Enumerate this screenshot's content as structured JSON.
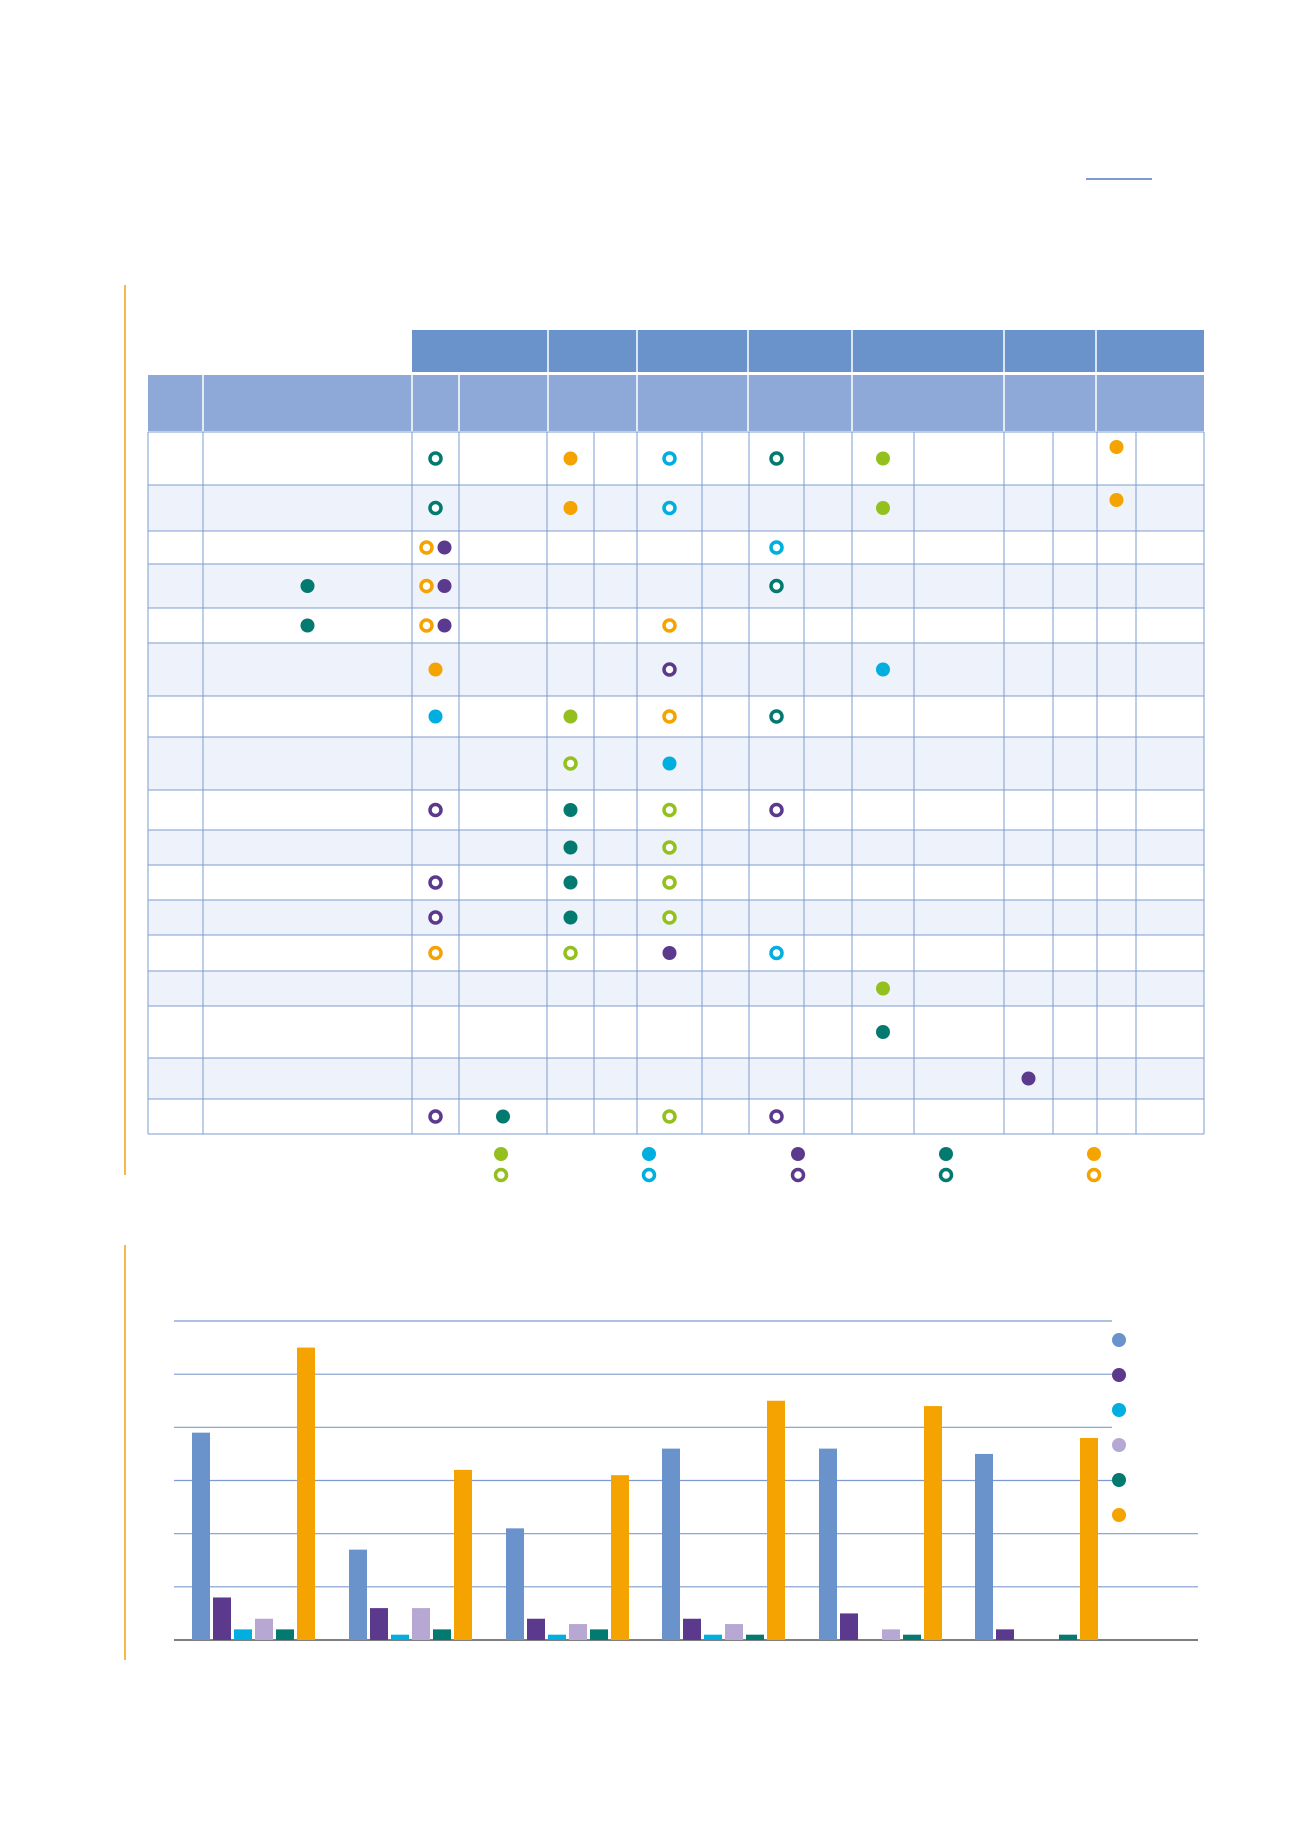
{
  "colors": {
    "header_dark": "#6b93cb",
    "header_light": "#8ea9d8",
    "row_alt": "#eef2fa",
    "grid": "#7d9bd0",
    "side_rule": "#f7b84a",
    "top_rule": "#7d9bd0",
    "lime": "#93c01f",
    "cyan": "#00aee0",
    "purple": "#5b3a8e",
    "teal": "#037a70",
    "orange": "#f5a300",
    "lavender": "#b6a8d2",
    "blue": "#6b93cb"
  },
  "matrix": {
    "row_count": 17,
    "rows": [
      {
        "marks": [
          {
            "col": 2,
            "color": "teal",
            "hollow": true
          },
          {
            "col": 4,
            "color": "orange",
            "hollow": false
          },
          {
            "col": 6,
            "color": "cyan",
            "hollow": true
          },
          {
            "col": 8,
            "color": "teal",
            "hollow": true
          },
          {
            "col": 10,
            "color": "lime",
            "hollow": false
          },
          {
            "col": 14,
            "color": "orange",
            "hollow": false,
            "top": true
          }
        ]
      },
      {
        "marks": [
          {
            "col": 2,
            "color": "teal",
            "hollow": true
          },
          {
            "col": 4,
            "color": "orange",
            "hollow": false
          },
          {
            "col": 6,
            "color": "cyan",
            "hollow": true
          },
          {
            "col": 10,
            "color": "lime",
            "hollow": false
          },
          {
            "col": 14,
            "color": "orange",
            "hollow": false,
            "top": true
          }
        ]
      },
      {
        "marks": [
          {
            "col": 2,
            "color": "orange",
            "hollow": true,
            "pair": -1
          },
          {
            "col": 2,
            "color": "purple",
            "hollow": false,
            "pair": 1
          },
          {
            "col": 8,
            "color": "cyan",
            "hollow": true
          }
        ]
      },
      {
        "marks": [
          {
            "col": 1,
            "color": "teal",
            "hollow": false
          },
          {
            "col": 2,
            "color": "orange",
            "hollow": true,
            "pair": -1
          },
          {
            "col": 2,
            "color": "purple",
            "hollow": false,
            "pair": 1
          },
          {
            "col": 8,
            "color": "teal",
            "hollow": true
          }
        ]
      },
      {
        "marks": [
          {
            "col": 1,
            "color": "teal",
            "hollow": false
          },
          {
            "col": 2,
            "color": "orange",
            "hollow": true,
            "pair": -1
          },
          {
            "col": 2,
            "color": "purple",
            "hollow": false,
            "pair": 1
          },
          {
            "col": 6,
            "color": "orange",
            "hollow": true
          }
        ]
      },
      {
        "marks": [
          {
            "col": 2,
            "color": "orange",
            "hollow": false
          },
          {
            "col": 6,
            "color": "purple",
            "hollow": true
          },
          {
            "col": 10,
            "color": "cyan",
            "hollow": false
          }
        ]
      },
      {
        "marks": [
          {
            "col": 2,
            "color": "cyan",
            "hollow": false
          },
          {
            "col": 4,
            "color": "lime",
            "hollow": false
          },
          {
            "col": 6,
            "color": "orange",
            "hollow": true
          },
          {
            "col": 8,
            "color": "teal",
            "hollow": true
          }
        ]
      },
      {
        "marks": [
          {
            "col": 4,
            "color": "lime",
            "hollow": true
          },
          {
            "col": 6,
            "color": "cyan",
            "hollow": false
          }
        ]
      },
      {
        "marks": [
          {
            "col": 2,
            "color": "purple",
            "hollow": true
          },
          {
            "col": 4,
            "color": "teal",
            "hollow": false
          },
          {
            "col": 6,
            "color": "lime",
            "hollow": true
          },
          {
            "col": 8,
            "color": "purple",
            "hollow": true
          }
        ]
      },
      {
        "marks": [
          {
            "col": 4,
            "color": "teal",
            "hollow": false
          },
          {
            "col": 6,
            "color": "lime",
            "hollow": true
          }
        ]
      },
      {
        "marks": [
          {
            "col": 2,
            "color": "purple",
            "hollow": true
          },
          {
            "col": 4,
            "color": "teal",
            "hollow": false
          },
          {
            "col": 6,
            "color": "lime",
            "hollow": true
          }
        ]
      },
      {
        "marks": [
          {
            "col": 2,
            "color": "purple",
            "hollow": true
          },
          {
            "col": 4,
            "color": "teal",
            "hollow": false
          },
          {
            "col": 6,
            "color": "lime",
            "hollow": true
          }
        ]
      },
      {
        "marks": [
          {
            "col": 2,
            "color": "orange",
            "hollow": true
          },
          {
            "col": 4,
            "color": "lime",
            "hollow": true
          },
          {
            "col": 6,
            "color": "purple",
            "hollow": false
          },
          {
            "col": 8,
            "color": "cyan",
            "hollow": true
          }
        ]
      },
      {
        "marks": [
          {
            "col": 10,
            "color": "lime",
            "hollow": false
          }
        ]
      },
      {
        "marks": [
          {
            "col": 10,
            "color": "teal",
            "hollow": false
          }
        ]
      },
      {
        "marks": [
          {
            "col": 12,
            "color": "purple",
            "hollow": false
          }
        ]
      },
      {
        "marks": [
          {
            "col": 2,
            "color": "purple",
            "hollow": true
          },
          {
            "col": 3,
            "color": "teal",
            "hollow": false
          },
          {
            "col": 6,
            "color": "lime",
            "hollow": true
          },
          {
            "col": 8,
            "color": "purple",
            "hollow": true
          }
        ]
      }
    ],
    "legend": [
      {
        "color": "lime"
      },
      {
        "color": "cyan"
      },
      {
        "color": "purple"
      },
      {
        "color": "teal"
      },
      {
        "color": "orange"
      }
    ]
  },
  "chart_data": {
    "type": "bar",
    "title": "",
    "xlabel": "",
    "ylabel": "",
    "ylim": [
      0,
      60
    ],
    "gridlines": [
      10,
      20,
      30,
      40,
      50,
      60
    ],
    "categories": [
      "",
      "",
      "",
      "",
      "",
      ""
    ],
    "series": [
      {
        "color": "blue",
        "values": [
          39,
          17,
          21,
          36,
          36,
          35
        ]
      },
      {
        "color": "purple",
        "values": [
          8,
          6,
          4,
          4,
          5,
          2
        ]
      },
      {
        "color": "cyan",
        "values": [
          2,
          1,
          1,
          1,
          0,
          0
        ]
      },
      {
        "color": "lavender",
        "values": [
          4,
          6,
          3,
          3,
          2,
          0
        ]
      },
      {
        "color": "teal",
        "values": [
          2,
          2,
          2,
          1,
          1,
          1
        ]
      },
      {
        "color": "orange",
        "values": [
          55,
          32,
          31,
          45,
          44,
          38
        ]
      }
    ],
    "legend_position": "right"
  }
}
